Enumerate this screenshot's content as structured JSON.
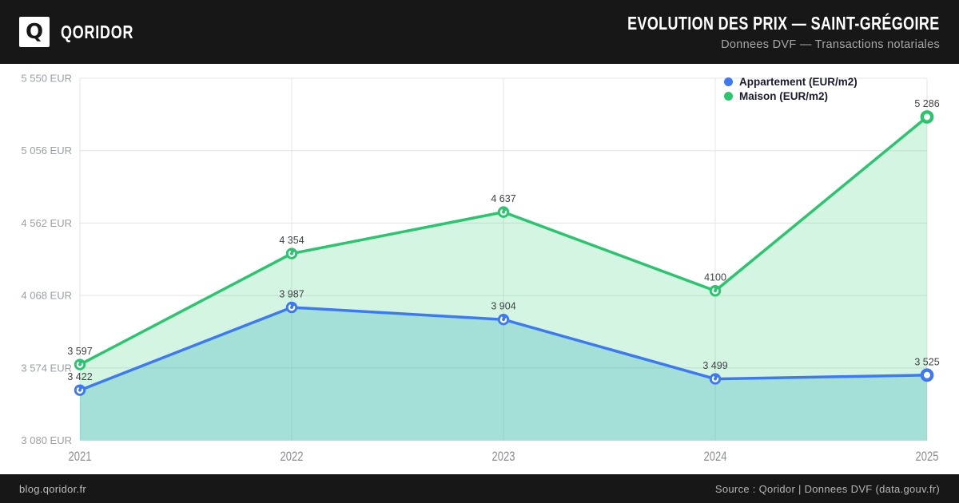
{
  "header": {
    "logo_letter": "Q",
    "brand": "QORIDOR",
    "title": "EVOLUTION DES PRIX — SAINT-GRÉGOIRE",
    "subtitle": "Donnees DVF — Transactions notariales"
  },
  "footer": {
    "left": "blog.qoridor.fr",
    "right": "Source : Qoridor | Donnees DVF (data.gouv.fr)"
  },
  "colors": {
    "header_bg": "#171717",
    "accent_blue": "#3D79F2",
    "accent_green": "#2BC46F"
  },
  "chart_data": {
    "type": "line",
    "title": "Evolution des prix — Saint-Grégoire",
    "xlabel": "",
    "ylabel": "",
    "grid": true,
    "legend_position": "top-right",
    "categories": [
      "2021",
      "2022",
      "2023",
      "2024",
      "2025"
    ],
    "ylim": [
      3080,
      5550
    ],
    "y_ticks": [
      {
        "label": "5 550 EUR",
        "value": 5550
      },
      {
        "label": "5 056 EUR",
        "value": 5056
      },
      {
        "label": "4 562 EUR",
        "value": 4562
      },
      {
        "label": "4 068 EUR",
        "value": 4068
      },
      {
        "label": "3 574 EUR",
        "value": 3574
      },
      {
        "label": "3 080 EUR",
        "value": 3080
      }
    ],
    "series": [
      {
        "name": "Appartement (EUR/m2)",
        "color": "#3D79F2",
        "area_fill": "rgba(23,162,184,0.26)",
        "values": [
          3422,
          3987,
          3904,
          3499,
          3525
        ],
        "point_labels": [
          "3 422",
          "3 987",
          "3 904",
          "3 499",
          "3 525"
        ]
      },
      {
        "name": "Maison (EUR/m2)",
        "color": "#2BC46F",
        "area_fill": "rgba(46,204,113,0.20)",
        "values": [
          3597,
          4354,
          4637,
          4100,
          5286
        ],
        "point_labels": [
          "3 597",
          "4 354",
          "4 637",
          "4100",
          "5 286"
        ]
      }
    ]
  }
}
